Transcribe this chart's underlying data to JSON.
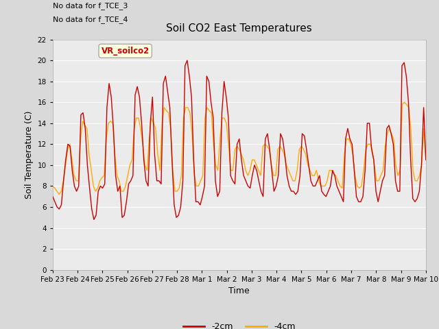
{
  "title": "Soil CO2 East Temperatures",
  "xlabel": "Time",
  "ylabel": "Soil Temperature (C)",
  "top_text_1": "No data for f_TCE_3",
  "top_text_2": "No data for f_TCE_4",
  "annotation_box": "VR_soilco2",
  "ylim": [
    0,
    22
  ],
  "yticks": [
    0,
    2,
    4,
    6,
    8,
    10,
    12,
    14,
    16,
    18,
    20,
    22
  ],
  "xtick_labels": [
    "Feb 23",
    "Feb 24",
    "Feb 25",
    "Feb 26",
    "Feb 27",
    "Feb 28",
    "Mar 1",
    "Mar 2",
    "Mar 3",
    "Mar 4",
    "Mar 5",
    "Mar 6",
    "Mar 7",
    "Mar 8",
    "Mar 9",
    "Mar 10"
  ],
  "legend_labels": [
    "-2cm",
    "-4cm"
  ],
  "legend_colors": [
    "#cc0000",
    "#ffaa00"
  ],
  "bg_color": "#d9d9d9",
  "plot_bg_color": "#ebebeb",
  "grid_color": "#ffffff",
  "line_color_2cm": "#cc0000",
  "line_color_4cm": "#ffaa00",
  "t_2cm": [
    7.0,
    6.5,
    6.0,
    5.8,
    6.2,
    8.5,
    10.5,
    12.0,
    11.8,
    9.5,
    8.0,
    7.5,
    8.0,
    14.8,
    15.0,
    13.5,
    10.0,
    7.8,
    5.8,
    4.8,
    5.2,
    7.5,
    8.0,
    7.8,
    8.2,
    15.5,
    17.8,
    16.5,
    13.5,
    9.0,
    7.5,
    8.0,
    5.0,
    5.2,
    6.5,
    8.2,
    8.5,
    9.0,
    16.7,
    17.5,
    16.5,
    14.0,
    10.5,
    8.5,
    8.0,
    14.0,
    16.5,
    11.0,
    8.5,
    8.5,
    8.2,
    17.8,
    18.5,
    17.0,
    15.5,
    10.5,
    6.2,
    5.0,
    5.2,
    6.0,
    8.5,
    19.5,
    20.0,
    18.5,
    16.5,
    10.5,
    6.5,
    6.5,
    6.2,
    7.0,
    8.0,
    18.5,
    18.0,
    16.0,
    14.5,
    8.5,
    7.0,
    7.5,
    15.0,
    18.0,
    16.5,
    14.5,
    9.0,
    8.5,
    8.2,
    12.0,
    12.5,
    10.5,
    9.0,
    8.5,
    8.0,
    7.8,
    9.0,
    10.0,
    9.5,
    8.5,
    7.5,
    7.0,
    12.5,
    13.0,
    11.5,
    9.5,
    7.5,
    8.0,
    9.0,
    13.0,
    12.5,
    11.0,
    9.0,
    8.0,
    7.5,
    7.5,
    7.2,
    7.5,
    9.0,
    13.0,
    12.8,
    11.5,
    10.0,
    8.5,
    8.0,
    8.0,
    8.5,
    9.0,
    7.5,
    7.2,
    7.0,
    7.5,
    8.0,
    9.5,
    9.0,
    8.0,
    7.5,
    7.0,
    6.5,
    12.5,
    13.5,
    12.5,
    12.0,
    9.5,
    7.0,
    6.5,
    6.5,
    7.0,
    9.5,
    14.0,
    14.0,
    11.5,
    10.5,
    7.5,
    6.5,
    7.5,
    8.5,
    9.0,
    13.5,
    13.8,
    13.0,
    12.0,
    8.5,
    7.5,
    7.5,
    19.5,
    19.8,
    18.5,
    16.0,
    10.5,
    6.8,
    6.5,
    6.8,
    7.5,
    10.0,
    15.5,
    10.5
  ],
  "t_4cm": [
    8.0,
    7.8,
    7.5,
    7.2,
    7.5,
    8.5,
    10.0,
    11.5,
    12.0,
    10.5,
    9.0,
    8.5,
    8.5,
    12.5,
    14.2,
    13.8,
    13.5,
    11.0,
    9.5,
    8.0,
    7.5,
    7.8,
    8.5,
    8.8,
    9.0,
    12.5,
    14.0,
    14.2,
    14.0,
    11.0,
    9.0,
    8.5,
    7.5,
    7.5,
    8.0,
    9.0,
    10.0,
    10.5,
    13.5,
    14.5,
    14.5,
    13.5,
    12.0,
    10.0,
    9.5,
    12.5,
    14.5,
    14.0,
    13.5,
    11.0,
    9.5,
    14.0,
    15.5,
    15.2,
    15.0,
    13.5,
    9.5,
    7.5,
    7.5,
    7.8,
    9.0,
    14.5,
    15.5,
    15.5,
    15.0,
    13.0,
    9.0,
    8.0,
    8.0,
    8.5,
    9.0,
    14.5,
    15.5,
    15.2,
    15.0,
    12.0,
    10.0,
    9.5,
    12.5,
    14.5,
    14.5,
    14.0,
    12.0,
    9.5,
    9.5,
    11.5,
    11.8,
    11.5,
    11.0,
    10.5,
    9.5,
    9.0,
    9.5,
    10.5,
    10.5,
    10.0,
    9.5,
    9.0,
    11.8,
    12.0,
    11.8,
    11.5,
    10.0,
    9.0,
    9.0,
    11.5,
    11.8,
    11.5,
    11.0,
    10.0,
    9.5,
    9.0,
    8.5,
    8.5,
    9.5,
    11.5,
    11.8,
    11.5,
    11.0,
    10.0,
    9.5,
    9.0,
    9.0,
    9.5,
    8.5,
    8.0,
    8.0,
    8.0,
    8.5,
    9.5,
    9.5,
    9.2,
    9.0,
    8.5,
    8.0,
    7.8,
    11.0,
    12.5,
    12.5,
    12.0,
    11.0,
    9.0,
    8.0,
    7.8,
    8.0,
    9.5,
    11.5,
    12.0,
    12.0,
    11.5,
    10.0,
    8.5,
    8.5,
    9.0,
    9.5,
    11.8,
    13.0,
    13.5,
    13.0,
    12.5,
    10.0,
    9.0,
    9.5,
    15.8,
    16.0,
    15.8,
    15.5,
    13.5,
    9.5,
    8.5,
    8.5,
    9.0,
    10.0,
    13.5,
    10.5
  ]
}
